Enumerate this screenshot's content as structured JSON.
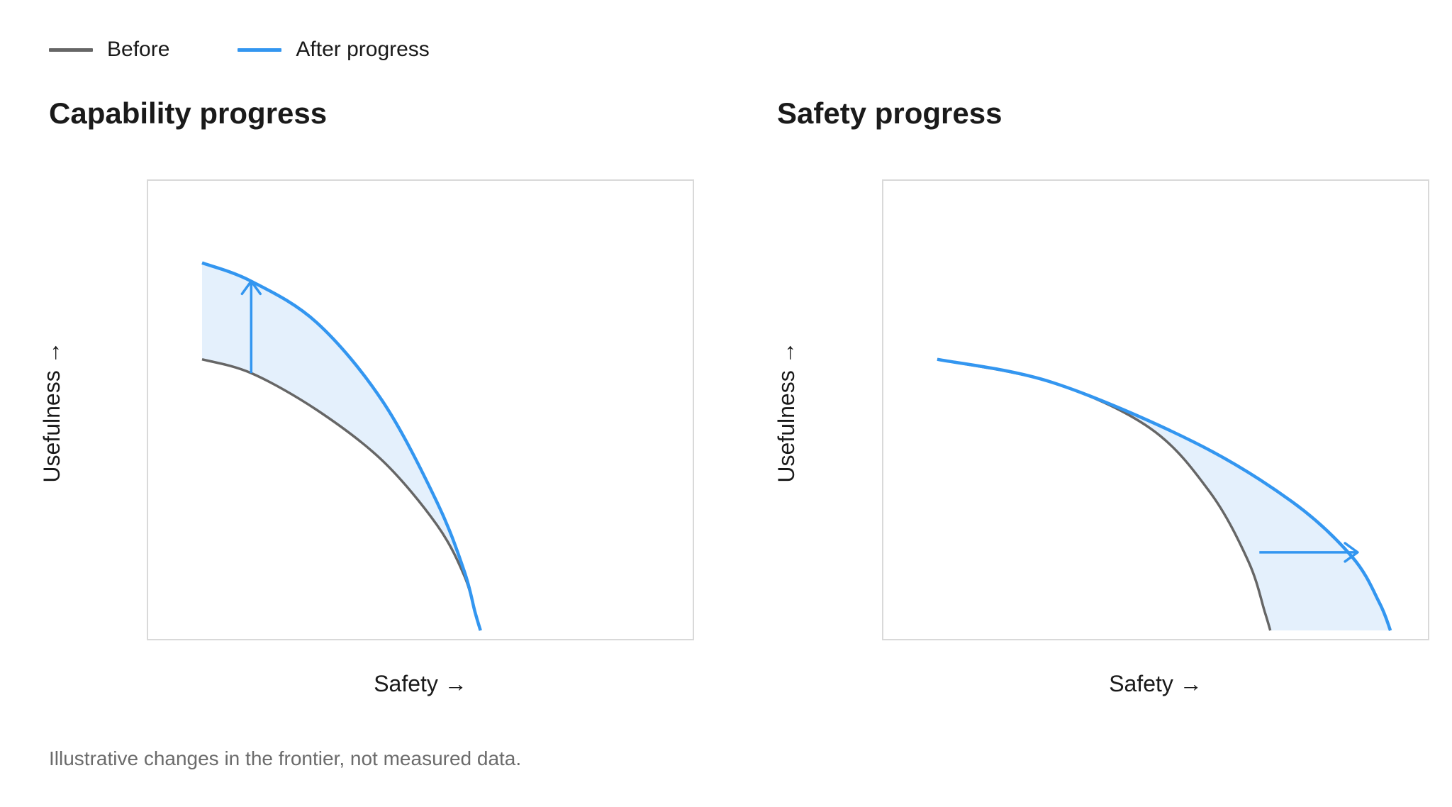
{
  "legend": {
    "before_label": "Before",
    "after_label": "After progress"
  },
  "colors": {
    "before": "#666666",
    "after": "#3396f0",
    "fill": "#e4f0fc",
    "frame": "#d9d9d9",
    "text": "#1a1a1a",
    "muted": "#6b6b6b"
  },
  "chart_data": [
    {
      "type": "line",
      "title": "Capability progress",
      "xlabel": "Safety →",
      "ylabel": "Usefulness →",
      "xlim": [
        0,
        1
      ],
      "ylim": [
        0,
        1
      ],
      "grid": false,
      "legend_position": "top-left",
      "shaded_region_between_series": true,
      "arrow": {
        "direction": "up",
        "from": [
          0.19,
          0.58
        ],
        "to": [
          0.19,
          0.78
        ]
      },
      "series": [
        {
          "name": "Before",
          "x": [
            0.1,
            0.19,
            0.31,
            0.43,
            0.53,
            0.58,
            0.6,
            0.61
          ],
          "y": [
            0.61,
            0.58,
            0.5,
            0.39,
            0.25,
            0.14,
            0.06,
            0.02
          ]
        },
        {
          "name": "After progress",
          "x": [
            0.1,
            0.19,
            0.31,
            0.43,
            0.53,
            0.58,
            0.6,
            0.61
          ],
          "y": [
            0.82,
            0.78,
            0.69,
            0.52,
            0.3,
            0.15,
            0.06,
            0.02
          ]
        }
      ]
    },
    {
      "type": "line",
      "title": "Safety progress",
      "xlabel": "Safety →",
      "ylabel": "Usefulness →",
      "xlim": [
        0,
        1
      ],
      "ylim": [
        0,
        1
      ],
      "grid": false,
      "legend_position": "top-left",
      "shaded_region_between_series": true,
      "arrow": {
        "direction": "right",
        "from": [
          0.69,
          0.19
        ],
        "to": [
          0.87,
          0.19
        ]
      },
      "series": [
        {
          "name": "Before",
          "x": [
            0.1,
            0.31,
            0.49,
            0.6,
            0.67,
            0.7,
            0.71
          ],
          "y": [
            0.61,
            0.56,
            0.46,
            0.32,
            0.17,
            0.06,
            0.02
          ]
        },
        {
          "name": "After progress",
          "x": [
            0.1,
            0.31,
            0.57,
            0.75,
            0.86,
            0.91,
            0.93
          ],
          "y": [
            0.61,
            0.56,
            0.43,
            0.3,
            0.18,
            0.08,
            0.02
          ]
        }
      ]
    }
  ],
  "footnote": "Illustrative changes in the frontier, not measured data."
}
